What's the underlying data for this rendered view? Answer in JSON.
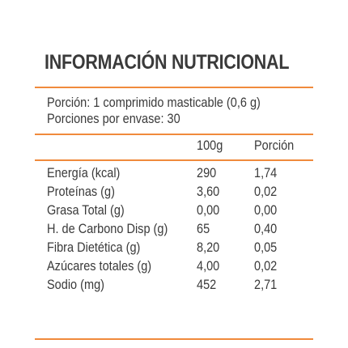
{
  "title": "INFORMACIÓN NUTRICIONAL",
  "portion_line": "Porción: 1 comprimido masticable (0,6 g)",
  "servings_line": "Porciones por envase: 30",
  "columns": {
    "per_100": "100g",
    "per_portion": "Porción"
  },
  "rows": [
    {
      "name": "Energía (kcal)",
      "per_100": "290",
      "per_portion": "1,74"
    },
    {
      "name": "Proteínas (g)",
      "per_100": "3,60",
      "per_portion": "0,02"
    },
    {
      "name": "Grasa Total (g)",
      "per_100": "0,00",
      "per_portion": "0,00"
    },
    {
      "name": "H. de Carbono Disp (g)",
      "per_100": "65",
      "per_portion": "0,40"
    },
    {
      "name": "Fibra Dietética (g)",
      "per_100": "8,20",
      "per_portion": "0,05"
    },
    {
      "name": "Azúcares totales (g)",
      "per_100": "4,00",
      "per_portion": "0,02"
    },
    {
      "name": "Sodio (mg)",
      "per_100": "452",
      "per_portion": "2,71"
    }
  ],
  "colors": {
    "rule": "#f08a3c",
    "text": "#3a3a3a"
  }
}
